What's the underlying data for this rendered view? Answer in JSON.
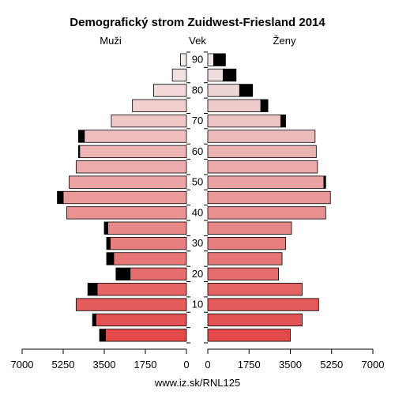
{
  "chart_data": {
    "type": "population-pyramid",
    "title": "Demografický strom Zuidwest-Friesland 2014",
    "left_label": "Muži",
    "center_label": "Vek",
    "right_label": "Ženy",
    "footer": "www.iz.sk/RNL125",
    "x_ticks_left": [
      "7000",
      "5250",
      "3500",
      "1750",
      "0"
    ],
    "x_ticks_right": [
      "0",
      "1750",
      "3500",
      "5250",
      "7000"
    ],
    "x_max": 7000,
    "age_ticks": [
      "0",
      "10",
      "20",
      "30",
      "40",
      "50",
      "60",
      "70",
      "80",
      "90"
    ],
    "age_ticks_labeled": [
      "10",
      "20",
      "30",
      "40",
      "50",
      "60",
      "70",
      "80",
      "90"
    ],
    "age_groups": [
      "0-4",
      "5-9",
      "10-14",
      "15-19",
      "20-24",
      "25-29",
      "30-34",
      "35-39",
      "40-44",
      "45-49",
      "50-54",
      "55-59",
      "60-64",
      "65-69",
      "70-74",
      "75-79",
      "80-84",
      "85-89",
      "90-94"
    ],
    "male": {
      "total": [
        3700,
        4000,
        4700,
        4200,
        3000,
        3400,
        3400,
        3500,
        5100,
        5500,
        5000,
        4700,
        4600,
        4600,
        3200,
        2300,
        1400,
        600,
        250
      ],
      "excess": [
        250,
        150,
        0,
        400,
        600,
        300,
        150,
        150,
        0,
        250,
        0,
        0,
        50,
        250,
        0,
        0,
        0,
        0,
        0
      ]
    },
    "female": {
      "total": [
        3500,
        4000,
        4700,
        4000,
        3000,
        3150,
        3300,
        3550,
        5000,
        5200,
        5000,
        4650,
        4600,
        4550,
        3300,
        2550,
        1900,
        1200,
        750
      ],
      "excess": [
        0,
        0,
        0,
        0,
        0,
        0,
        0,
        0,
        0,
        0,
        80,
        0,
        0,
        0,
        200,
        300,
        550,
        550,
        500
      ]
    }
  }
}
